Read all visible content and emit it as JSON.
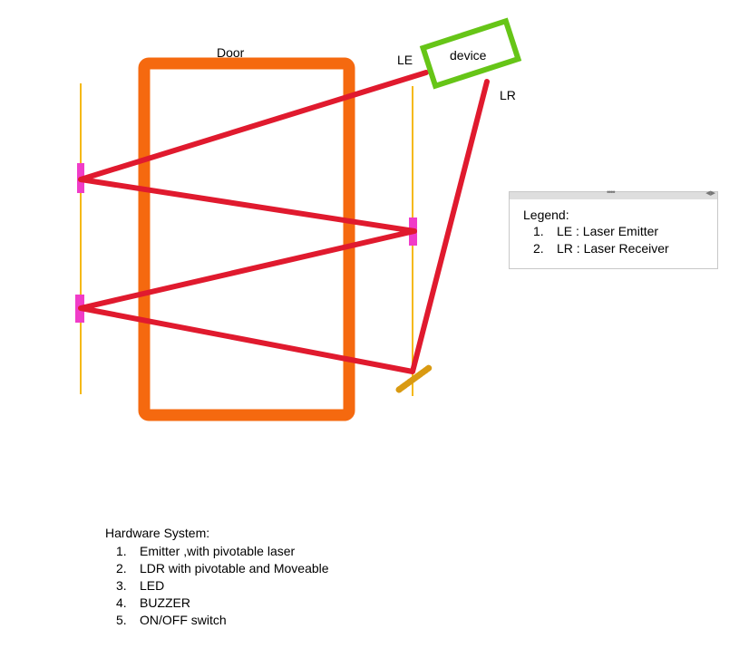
{
  "diagram": {
    "door_label": "Door",
    "device_label": "device",
    "le_label": "LE",
    "lr_label": "LR",
    "colors": {
      "door": "#f5690f",
      "device": "#66c517",
      "laser": "#e01a2e",
      "rail": "#f5b915",
      "mirror": "#f03cc8",
      "receiver": "#d99a12"
    }
  },
  "legend": {
    "title": "Legend:",
    "items": [
      {
        "num": "1.",
        "text": "LE : Laser Emitter"
      },
      {
        "num": "2.",
        "text": "LR : Laser Receiver"
      }
    ]
  },
  "hardware": {
    "title": "Hardware System:",
    "items": [
      {
        "num": "1.",
        "text": "Emitter ,with pivotable laser"
      },
      {
        "num": "2.",
        "text": "LDR with pivotable and Moveable"
      },
      {
        "num": "3.",
        "text": "LED"
      },
      {
        "num": "4.",
        "text": "BUZZER"
      },
      {
        "num": "5.",
        "text": "ON/OFF switch"
      }
    ]
  }
}
